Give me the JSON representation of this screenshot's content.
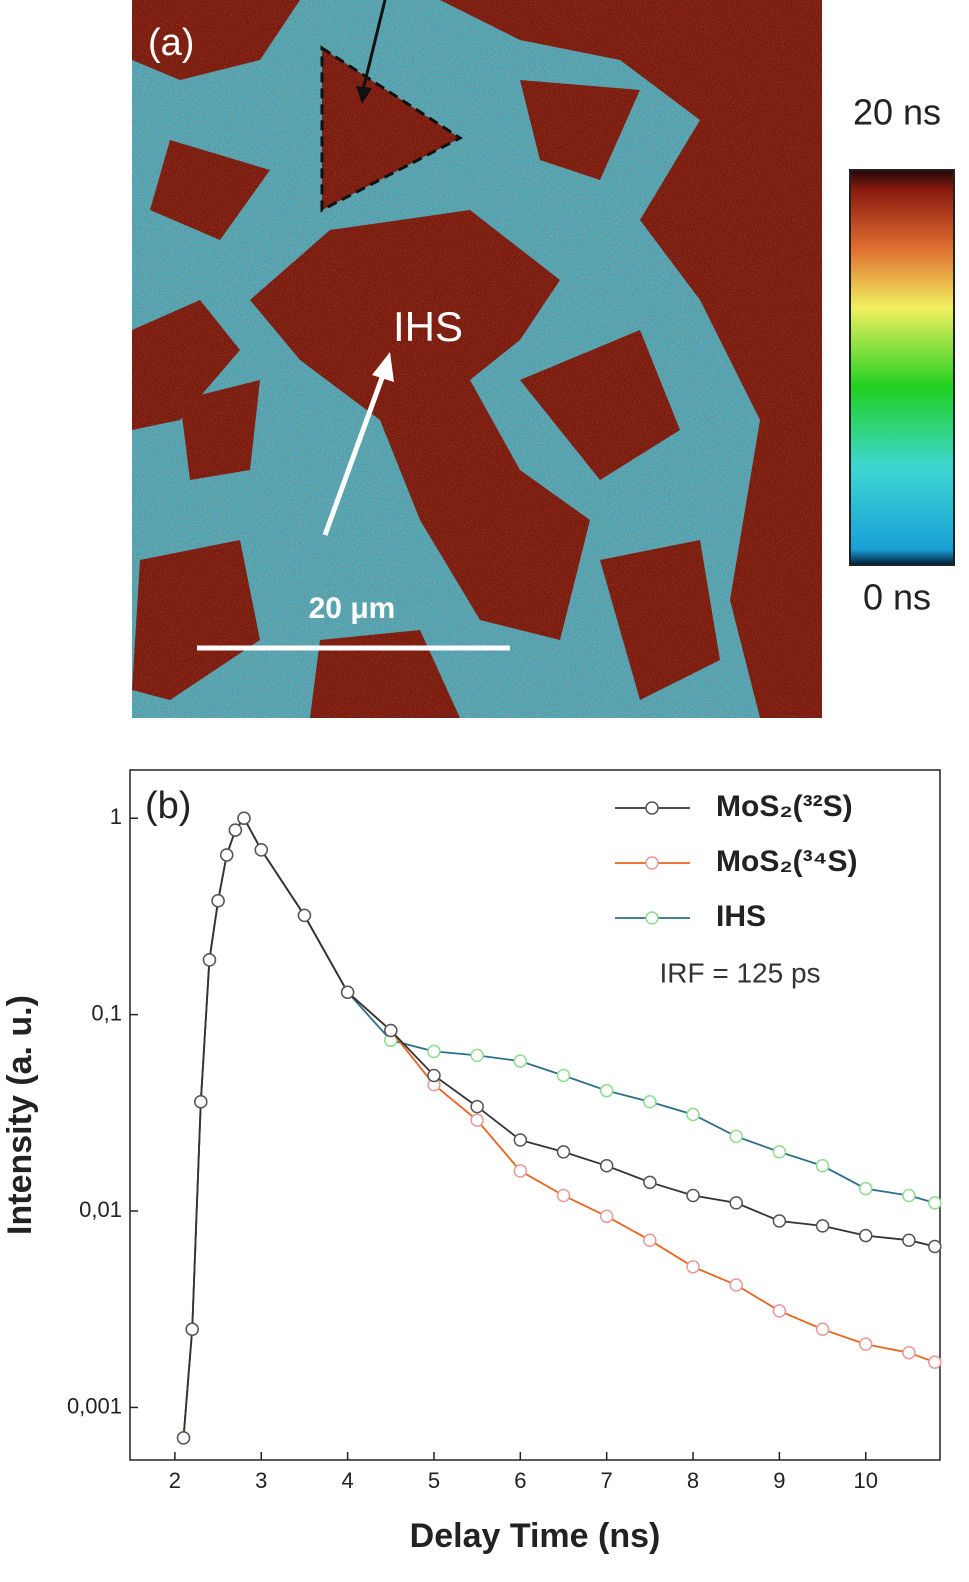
{
  "chart_data": [
    {
      "type": "image",
      "label": "(a)",
      "annotation": "IHS",
      "scale_bar": "20 μm",
      "colorbar_lim": [
        0,
        20
      ],
      "colorbar_ticks": [
        {
          "value": 0,
          "label": "0 ns"
        },
        {
          "value": 20,
          "label": "20 ns"
        }
      ]
    },
    {
      "type": "line",
      "label": "(b)",
      "annotation": "IRF = 125 ps",
      "xlabel": "Delay Time (ns)",
      "ylabel": "Intensity (a. u.)",
      "log_y": true,
      "legend": "top-right",
      "xlim": [
        1.48,
        10.86
      ],
      "xticks": [
        2,
        3,
        4,
        5,
        6,
        7,
        8,
        9,
        10
      ],
      "ylim": [
        0.00054,
        1.76
      ],
      "yticks": [
        {
          "value": 0.001,
          "label": "0,001"
        },
        {
          "value": 0.01,
          "label": "0,01"
        },
        {
          "value": 0.1,
          "label": "0,1"
        },
        1
      ],
      "x": [
        2.1,
        2.2,
        2.3,
        2.4,
        2.5,
        2.6,
        2.7,
        2.8,
        3.0,
        3.5,
        4.0,
        4.5,
        5.0,
        5.5,
        6.0,
        6.5,
        7.0,
        7.5,
        8.0,
        8.5,
        9.0,
        9.5,
        10.0,
        10.5,
        10.8
      ],
      "series": [
        {
          "name": "MoS₂(³²S)",
          "color": "#333333",
          "marker_color": "#555555",
          "values": [
            0.0007,
            0.0025,
            0.036,
            0.19,
            0.38,
            0.65,
            0.87,
            1,
            0.69,
            0.32,
            0.13,
            0.083,
            0.049,
            0.034,
            0.023,
            0.02,
            0.017,
            0.014,
            0.012,
            0.011,
            0.0089,
            0.0084,
            0.0075,
            0.0071,
            0.0066
          ]
        },
        {
          "name": "MoS₂(³⁴S)",
          "color": "#e8641e",
          "marker_color": "#e89a9a",
          "values": [
            0.0007,
            0.0025,
            0.036,
            0.19,
            0.38,
            0.65,
            0.87,
            1,
            0.69,
            0.32,
            0.13,
            0.083,
            0.044,
            0.029,
            0.016,
            0.012,
            0.0094,
            0.0071,
            0.0052,
            0.0042,
            0.0031,
            0.0025,
            0.0021,
            0.0019,
            0.0017
          ]
        },
        {
          "name": "IHS",
          "color": "#2b6f8a",
          "marker_color": "#8fdc8f",
          "values": [
            0.0007,
            0.0025,
            0.036,
            0.19,
            0.38,
            0.65,
            0.87,
            1,
            0.69,
            0.32,
            0.13,
            0.074,
            0.065,
            0.062,
            0.058,
            0.049,
            0.041,
            0.036,
            0.031,
            0.024,
            0.02,
            0.017,
            0.013,
            0.012,
            0.011
          ]
        }
      ]
    }
  ]
}
